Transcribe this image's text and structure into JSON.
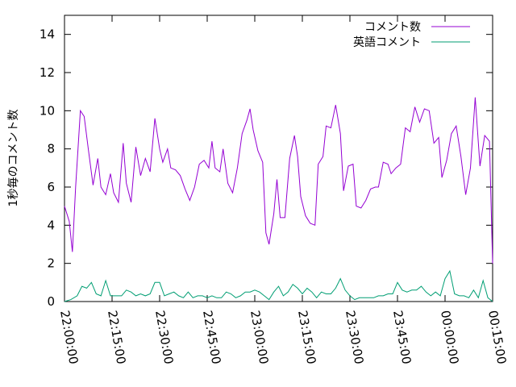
{
  "chart_data": {
    "type": "line",
    "ylabel": "1秒毎のコメント数",
    "xlabel": "",
    "title": "",
    "ylim": [
      0,
      15
    ],
    "yticks": [
      0,
      2,
      4,
      6,
      8,
      10,
      12,
      14
    ],
    "xlim_minutes": [
      0,
      135
    ],
    "xticks": [
      "22:00:00",
      "22:15:00",
      "22:30:00",
      "22:45:00",
      "23:00:00",
      "23:15:00",
      "23:30:00",
      "23:45:00",
      "00:00:00",
      "00:15:00"
    ],
    "grid": false,
    "legend_position": "top-right",
    "series": [
      {
        "name": "コメント数",
        "color": "#9400d3",
        "points": [
          [
            0,
            5.0
          ],
          [
            1.5,
            4.2
          ],
          [
            2.5,
            2.6
          ],
          [
            3.5,
            6.0
          ],
          [
            5,
            10.0
          ],
          [
            6.2,
            9.7
          ],
          [
            7.5,
            8.0
          ],
          [
            9,
            6.1
          ],
          [
            10.5,
            7.5
          ],
          [
            11.5,
            6.0
          ],
          [
            13,
            5.6
          ],
          [
            14.5,
            6.7
          ],
          [
            15.5,
            5.7
          ],
          [
            17,
            5.2
          ],
          [
            18.5,
            8.3
          ],
          [
            19.5,
            6.2
          ],
          [
            21,
            5.2
          ],
          [
            22.5,
            8.1
          ],
          [
            24,
            6.6
          ],
          [
            25.5,
            7.5
          ],
          [
            27,
            6.8
          ],
          [
            28.5,
            9.6
          ],
          [
            30,
            8.0
          ],
          [
            31,
            7.3
          ],
          [
            32.5,
            8.0
          ],
          [
            33.5,
            7.0
          ],
          [
            35,
            6.9
          ],
          [
            36.5,
            6.6
          ],
          [
            38,
            5.9
          ],
          [
            39.5,
            5.3
          ],
          [
            41,
            6.0
          ],
          [
            42.5,
            7.2
          ],
          [
            44,
            7.4
          ],
          [
            45.5,
            7.0
          ],
          [
            46.5,
            8.4
          ],
          [
            47.5,
            7.0
          ],
          [
            49,
            6.8
          ],
          [
            50,
            8.0
          ],
          [
            51.5,
            6.2
          ],
          [
            53,
            5.7
          ],
          [
            54.5,
            7.0
          ],
          [
            56,
            8.8
          ],
          [
            57.5,
            9.5
          ],
          [
            58.5,
            10.1
          ],
          [
            59.5,
            9.0
          ],
          [
            61,
            7.9
          ],
          [
            62.5,
            7.3
          ],
          [
            63.5,
            3.6
          ],
          [
            64.5,
            3.0
          ],
          [
            66,
            4.6
          ],
          [
            67,
            6.4
          ],
          [
            68,
            4.4
          ],
          [
            69.5,
            4.4
          ],
          [
            71,
            7.5
          ],
          [
            72.5,
            8.7
          ],
          [
            73.5,
            7.6
          ],
          [
            74.5,
            5.5
          ],
          [
            76,
            4.5
          ],
          [
            77.5,
            4.1
          ],
          [
            79,
            4.0
          ],
          [
            80,
            7.2
          ],
          [
            81.5,
            7.6
          ],
          [
            82.5,
            9.2
          ],
          [
            84,
            9.1
          ],
          [
            85.5,
            10.3
          ],
          [
            87,
            8.8
          ],
          [
            88,
            5.8
          ],
          [
            89.5,
            7.1
          ],
          [
            91,
            7.2
          ],
          [
            92,
            5.0
          ],
          [
            93.5,
            4.9
          ],
          [
            95,
            5.3
          ],
          [
            96.5,
            5.9
          ],
          [
            98,
            6.0
          ],
          [
            99,
            6.0
          ],
          [
            100.5,
            7.3
          ],
          [
            102,
            7.2
          ],
          [
            103,
            6.7
          ],
          [
            104.5,
            7.0
          ],
          [
            106,
            7.2
          ],
          [
            107.5,
            9.1
          ],
          [
            109,
            8.9
          ],
          [
            110.5,
            10.2
          ],
          [
            112,
            9.4
          ],
          [
            113.5,
            10.1
          ],
          [
            115,
            10.0
          ],
          [
            116.5,
            8.3
          ],
          [
            118,
            8.6
          ],
          [
            119,
            6.5
          ],
          [
            120.5,
            7.4
          ],
          [
            122,
            8.8
          ],
          [
            123.5,
            9.2
          ],
          [
            125,
            7.6
          ],
          [
            126.5,
            5.6
          ],
          [
            128,
            7.0
          ],
          [
            129.5,
            10.7
          ],
          [
            131,
            7.1
          ],
          [
            132.5,
            8.7
          ],
          [
            134,
            8.4
          ],
          [
            135,
            2.0
          ]
        ]
      },
      {
        "name": "英語コメント",
        "color": "#009e73",
        "points": [
          [
            0,
            0.0
          ],
          [
            2,
            0.1
          ],
          [
            4,
            0.3
          ],
          [
            5.5,
            0.8
          ],
          [
            7,
            0.7
          ],
          [
            8.5,
            1.0
          ],
          [
            10,
            0.4
          ],
          [
            11.5,
            0.3
          ],
          [
            13,
            1.1
          ],
          [
            14.5,
            0.3
          ],
          [
            16,
            0.3
          ],
          [
            18,
            0.3
          ],
          [
            19.5,
            0.6
          ],
          [
            21,
            0.5
          ],
          [
            22.5,
            0.3
          ],
          [
            24,
            0.4
          ],
          [
            25.5,
            0.3
          ],
          [
            27,
            0.4
          ],
          [
            28.5,
            1.0
          ],
          [
            30,
            1.0
          ],
          [
            31.5,
            0.3
          ],
          [
            33,
            0.4
          ],
          [
            34.5,
            0.5
          ],
          [
            36,
            0.3
          ],
          [
            37.5,
            0.2
          ],
          [
            39,
            0.5
          ],
          [
            40.5,
            0.2
          ],
          [
            42,
            0.3
          ],
          [
            43.5,
            0.3
          ],
          [
            45,
            0.2
          ],
          [
            46.5,
            0.3
          ],
          [
            48,
            0.2
          ],
          [
            49.5,
            0.2
          ],
          [
            51,
            0.5
          ],
          [
            52.5,
            0.4
          ],
          [
            54,
            0.2
          ],
          [
            55.5,
            0.3
          ],
          [
            57,
            0.5
          ],
          [
            58.5,
            0.5
          ],
          [
            60,
            0.6
          ],
          [
            61.5,
            0.5
          ],
          [
            63,
            0.3
          ],
          [
            64.5,
            0.1
          ],
          [
            66,
            0.5
          ],
          [
            67.5,
            0.8
          ],
          [
            69,
            0.3
          ],
          [
            70.5,
            0.5
          ],
          [
            72,
            0.9
          ],
          [
            73.5,
            0.7
          ],
          [
            75,
            0.4
          ],
          [
            76.5,
            0.7
          ],
          [
            78,
            0.5
          ],
          [
            79.5,
            0.2
          ],
          [
            81,
            0.5
          ],
          [
            82.5,
            0.4
          ],
          [
            84,
            0.4
          ],
          [
            85.5,
            0.7
          ],
          [
            87,
            1.2
          ],
          [
            88.5,
            0.6
          ],
          [
            90,
            0.3
          ],
          [
            91.5,
            0.1
          ],
          [
            93,
            0.2
          ],
          [
            94.5,
            0.2
          ],
          [
            96,
            0.2
          ],
          [
            97.5,
            0.2
          ],
          [
            99,
            0.3
          ],
          [
            100.5,
            0.3
          ],
          [
            102,
            0.4
          ],
          [
            103.5,
            0.4
          ],
          [
            105,
            1.0
          ],
          [
            106.5,
            0.6
          ],
          [
            108,
            0.5
          ],
          [
            109.5,
            0.6
          ],
          [
            111,
            0.6
          ],
          [
            112.5,
            0.8
          ],
          [
            114,
            0.5
          ],
          [
            115.5,
            0.3
          ],
          [
            117,
            0.5
          ],
          [
            118.5,
            0.3
          ],
          [
            120,
            1.2
          ],
          [
            121.5,
            1.6
          ],
          [
            123,
            0.4
          ],
          [
            124.5,
            0.3
          ],
          [
            126,
            0.3
          ],
          [
            127.5,
            0.2
          ],
          [
            129,
            0.6
          ],
          [
            130.5,
            0.2
          ],
          [
            132,
            1.1
          ],
          [
            133.5,
            0.2
          ],
          [
            135,
            0.0
          ]
        ]
      }
    ]
  }
}
